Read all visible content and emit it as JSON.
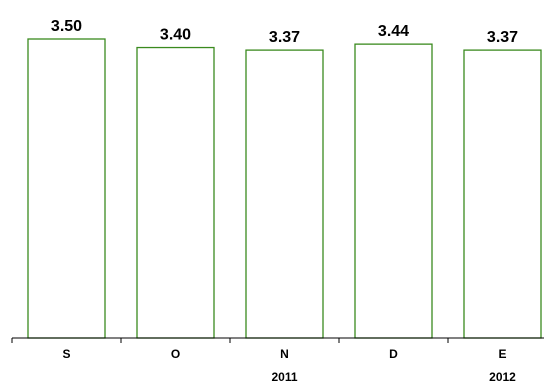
{
  "chart_data": {
    "type": "bar",
    "categories": [
      "S",
      "O",
      "N",
      "D",
      "E"
    ],
    "values": [
      3.5,
      3.4,
      3.37,
      3.44,
      3.37
    ],
    "value_labels": [
      "3.50",
      "3.40",
      "3.37",
      "3.44",
      "3.37"
    ],
    "year_labels": [
      {
        "text": "2011",
        "category_index": 2
      },
      {
        "text": "2012",
        "category_index": 4
      }
    ],
    "ylim": [
      0,
      3.5
    ],
    "grid": false,
    "colors": {
      "bar_stroke": "#3a8a1e",
      "bar_fill": "#ffffff"
    }
  }
}
